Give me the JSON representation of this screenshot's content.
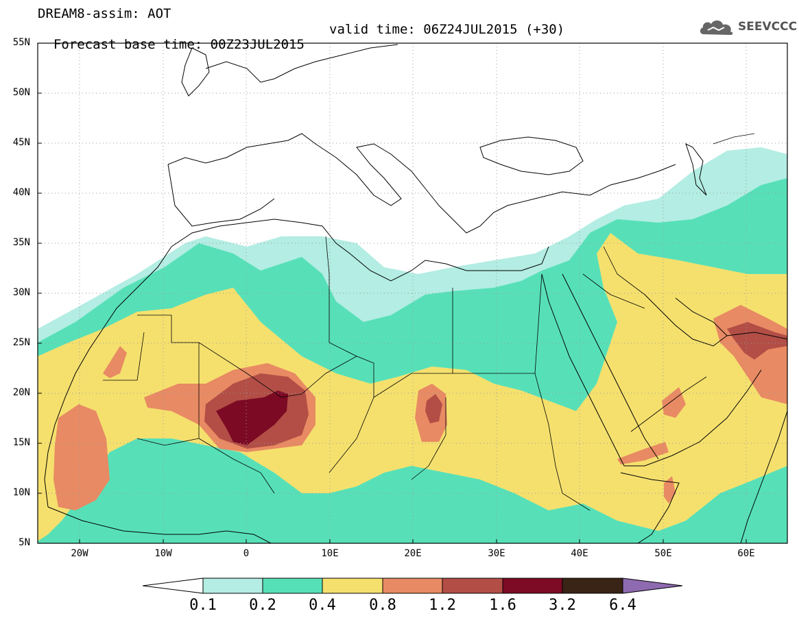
{
  "header": {
    "model_line": "DREAM8-assim: AOT",
    "base_time": "Forecast base time: 00Z23JUL2015",
    "valid_time": "valid time: 06Z24JUL2015 (+30)"
  },
  "logo": {
    "text": "SEEVCCC",
    "icon": "cloud-icon"
  },
  "axes": {
    "lat_labels": [
      "55N",
      "50N",
      "45N",
      "40N",
      "35N",
      "30N",
      "25N",
      "20N",
      "15N",
      "10N",
      "5N"
    ],
    "lon_labels": [
      "20W",
      "10W",
      "0",
      "10E",
      "20E",
      "30E",
      "40E",
      "50E",
      "60E"
    ]
  },
  "colorbar": {
    "levels": [
      "0.1",
      "0.2",
      "0.4",
      "0.8",
      "1.2",
      "1.6",
      "3.2",
      "6.4"
    ],
    "colors": [
      "#ffffff",
      "#b3ede3",
      "#57e0b8",
      "#f5e06e",
      "#e88a63",
      "#b24e46",
      "#7c0a24",
      "#3a2416",
      "#8e6ab0"
    ]
  },
  "field_colors": {
    "0.1-0.2": "#b3ede3",
    "0.2-0.4": "#57e0b8",
    "0.4-0.8": "#f5e06e",
    "0.8-1.2": "#e88a63",
    "1.2-1.6": "#b24e46",
    "1.6-3.2": "#7c0a24"
  }
}
